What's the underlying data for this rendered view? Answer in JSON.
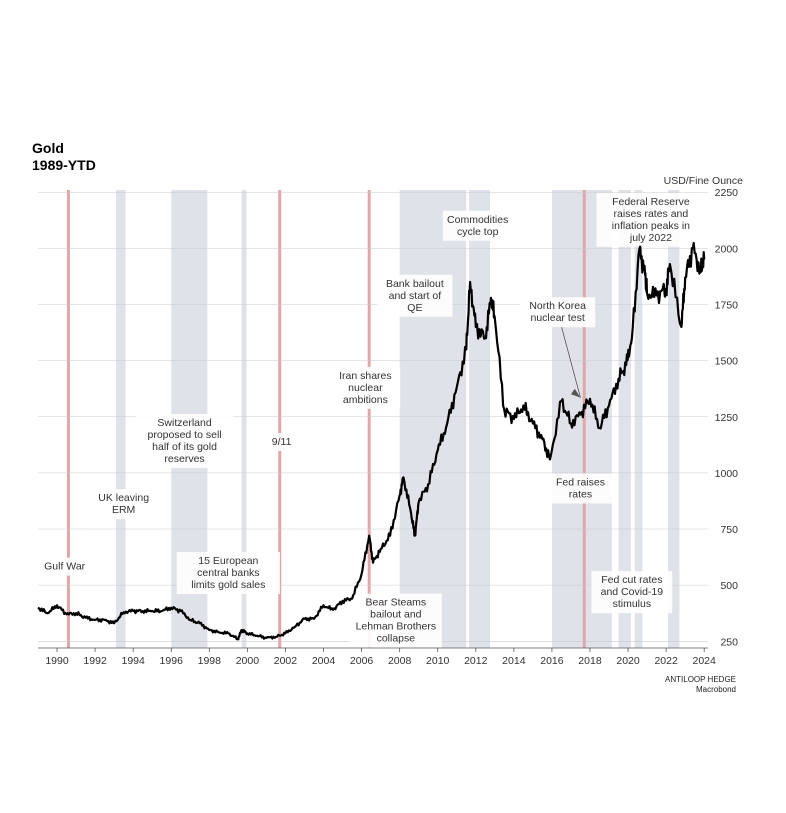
{
  "chart_data": {
    "type": "line",
    "title": "Gold",
    "subtitle": "1989-YTD",
    "ylabel": "USD/Fine Ounce",
    "xlim": [
      1989,
      2024.2
    ],
    "ylim": [
      220,
      2260
    ],
    "x_ticks": [
      "1990",
      "1992",
      "1994",
      "1996",
      "1998",
      "2000",
      "2002",
      "2004",
      "2006",
      "2008",
      "2010",
      "2012",
      "2014",
      "2016",
      "2018",
      "2020",
      "2022",
      "2024"
    ],
    "y_ticks": [
      "250",
      "500",
      "750",
      "1000",
      "1250",
      "1500",
      "1750",
      "2000",
      "2250"
    ],
    "series": [
      {
        "name": "",
        "color": "#000000",
        "x": [
          1989.0,
          1989.5,
          1990.0,
          1990.5,
          1991.0,
          1991.5,
          1992.0,
          1992.5,
          1993.0,
          1993.5,
          1994.0,
          1994.5,
          1995.0,
          1995.5,
          1996.0,
          1996.5,
          1997.0,
          1997.5,
          1998.0,
          1998.5,
          1999.0,
          1999.5,
          1999.7,
          2000.0,
          2000.5,
          2001.0,
          2001.5,
          2002.0,
          2002.5,
          2003.0,
          2003.5,
          2004.0,
          2004.5,
          2005.0,
          2005.5,
          2006.0,
          2006.4,
          2006.6,
          2007.0,
          2007.5,
          2008.0,
          2008.2,
          2008.6,
          2008.8,
          2009.0,
          2009.5,
          2010.0,
          2010.5,
          2011.0,
          2011.5,
          2011.7,
          2012.0,
          2012.5,
          2012.8,
          2013.0,
          2013.5,
          2014.0,
          2014.5,
          2015.0,
          2015.5,
          2015.9,
          2016.5,
          2017.0,
          2017.5,
          2018.0,
          2018.5,
          2019.0,
          2019.5,
          2019.9,
          2020.2,
          2020.6,
          2020.9,
          2021.0,
          2021.5,
          2022.0,
          2022.2,
          2022.8,
          2023.0,
          2023.4,
          2023.8,
          2024.0
        ],
        "y": [
          400,
          375,
          410,
          370,
          375,
          355,
          345,
          345,
          330,
          380,
          385,
          385,
          385,
          385,
          400,
          385,
          345,
          330,
          300,
          290,
          285,
          260,
          300,
          285,
          275,
          265,
          270,
          285,
          315,
          350,
          350,
          410,
          390,
          430,
          440,
          550,
          720,
          600,
          660,
          720,
          900,
          980,
          820,
          720,
          870,
          950,
          1100,
          1220,
          1380,
          1550,
          1850,
          1650,
          1600,
          1780,
          1690,
          1280,
          1240,
          1300,
          1220,
          1150,
          1060,
          1320,
          1220,
          1260,
          1330,
          1200,
          1300,
          1420,
          1480,
          1600,
          2000,
          1880,
          1800,
          1790,
          1820,
          1930,
          1650,
          1870,
          2000,
          1900,
          1950
        ]
      }
    ],
    "shaded_regions": [
      {
        "from": 1993.1,
        "to": 1993.6
      },
      {
        "from": 1996.0,
        "to": 1997.9
      },
      {
        "from": 1999.7,
        "to": 1999.95
      },
      {
        "from": 2008.0,
        "to": 2011.5
      },
      {
        "from": 2011.65,
        "to": 2012.75
      },
      {
        "from": 2016.0,
        "to": 2019.15
      },
      {
        "from": 2019.5,
        "to": 2020.15
      },
      {
        "from": 2020.35,
        "to": 2020.75
      },
      {
        "from": 2022.1,
        "to": 2022.7
      }
    ],
    "event_lines": [
      {
        "x": 1990.6,
        "color": "#e3a6a6"
      },
      {
        "x": 2001.7,
        "color": "#e3a6a6"
      },
      {
        "x": 2006.4,
        "color": "#e3a6a6"
      },
      {
        "x": 2017.7,
        "color": "#e3a6a6"
      }
    ],
    "annotations": [
      {
        "lines": [
          "Gulf War"
        ],
        "x": 1990.4,
        "y": 560
      },
      {
        "lines": [
          "UK leaving",
          "ERM"
        ],
        "x": 1993.5,
        "y": 865
      },
      {
        "lines": [
          "Switzerland",
          "proposed to sell",
          "half of its gold",
          "reserves"
        ],
        "x": 1996.7,
        "y": 1200
      },
      {
        "lines": [
          "9/11"
        ],
        "x": 2001.8,
        "y": 1115
      },
      {
        "lines": [
          "15 European",
          "central banks",
          "limits gold sales"
        ],
        "x": 1999.0,
        "y": 585
      },
      {
        "lines": [
          "Iran shares",
          "nuclear",
          "ambitions"
        ],
        "x": 2006.2,
        "y": 1410
      },
      {
        "lines": [
          "Bear Steams",
          "bailout and",
          "Lehman Brothers",
          "collapse"
        ],
        "x": 2007.8,
        "y": 400
      },
      {
        "lines": [
          "Bank bailout",
          "and start of",
          "QE"
        ],
        "x": 2008.8,
        "y": 1820
      },
      {
        "lines": [
          "Commodities",
          "cycle top"
        ],
        "x": 2012.1,
        "y": 2105
      },
      {
        "lines": [
          "North Korea",
          "nuclear test"
        ],
        "x": 2016.3,
        "y": 1720
      },
      {
        "lines": [
          "Fed raises",
          "rates"
        ],
        "x": 2017.5,
        "y": 935
      },
      {
        "lines": [
          "Fed cut rates",
          "and Covid-19",
          "stimulus"
        ],
        "x": 2020.2,
        "y": 500
      },
      {
        "lines": [
          "Federal Reserve",
          "raises rates and",
          "inflation peaks in",
          "july 2022"
        ],
        "x": 2021.2,
        "y": 2185
      }
    ]
  },
  "source": {
    "line1": "ANTILOOP HEDGE",
    "line2": "Macrobond"
  }
}
